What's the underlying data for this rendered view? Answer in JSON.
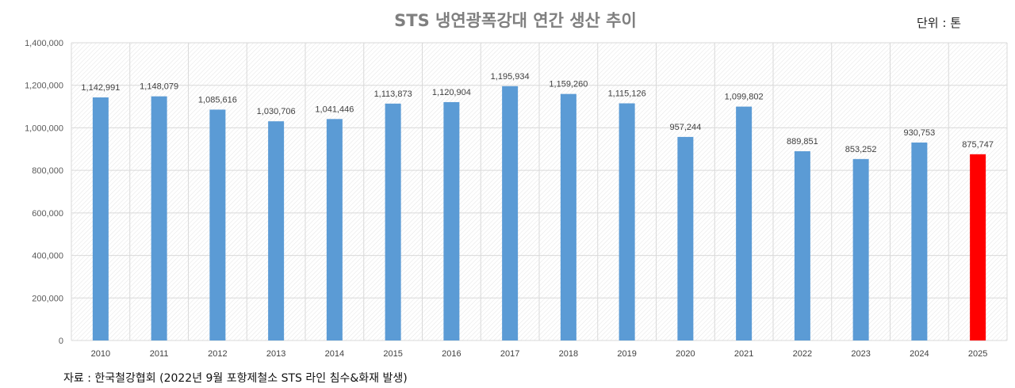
{
  "chart_data": {
    "type": "bar",
    "title": "STS 냉연광폭강대 연간 생산 추이",
    "unit_label": "단위 : 톤",
    "source": "자료 : 한국철강협회 (2022년 9월 포항제철소 STS 라인 침수&화재 발생)",
    "categories": [
      "2010",
      "2011",
      "2012",
      "2013",
      "2014",
      "2015",
      "2016",
      "2017",
      "2018",
      "2019",
      "2020",
      "2021",
      "2022",
      "2023",
      "2024",
      "2025"
    ],
    "values": [
      1142991,
      1148079,
      1085616,
      1030706,
      1041446,
      1113873,
      1120904,
      1195934,
      1159260,
      1115126,
      957244,
      1099802,
      889851,
      853252,
      930753,
      875747
    ],
    "data_labels": [
      "1,142,991",
      "1,148,079",
      "1,085,616",
      "1,030,706",
      "1,041,446",
      "1,113,873",
      "1,120,904",
      "1,195,934",
      "1,159,260",
      "1,115,126",
      "957,244",
      "1,099,802",
      "889,851",
      "853,252",
      "930,753",
      "875,747"
    ],
    "bar_colors": [
      "#5b9bd5",
      "#5b9bd5",
      "#5b9bd5",
      "#5b9bd5",
      "#5b9bd5",
      "#5b9bd5",
      "#5b9bd5",
      "#5b9bd5",
      "#5b9bd5",
      "#5b9bd5",
      "#5b9bd5",
      "#5b9bd5",
      "#5b9bd5",
      "#5b9bd5",
      "#5b9bd5",
      "#ff0000"
    ],
    "ylim": [
      0,
      1400000
    ],
    "yticks": [
      0,
      200000,
      400000,
      600000,
      800000,
      1000000,
      1200000,
      1400000
    ],
    "ytick_labels": [
      "0",
      "200,000",
      "400,000",
      "600,000",
      "800,000",
      "1,000,000",
      "1,200,000",
      "1,400,000"
    ],
    "xlabel": "",
    "ylabel": "",
    "grid": true,
    "legend": "none"
  }
}
